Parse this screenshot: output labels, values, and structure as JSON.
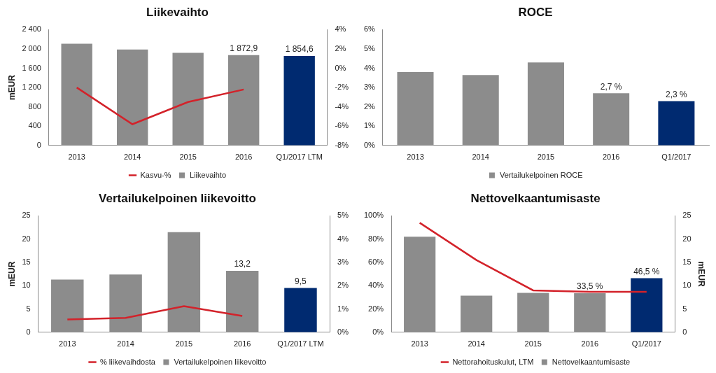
{
  "chart_data": [
    {
      "type": "bar",
      "title": "Liikevaihto",
      "categories": [
        "2013",
        "2014",
        "2015",
        "2016",
        "Q1/2017 LTM"
      ],
      "ylabel": "mEUR",
      "ylim": [
        0,
        2400
      ],
      "yticks": [
        0,
        400,
        800,
        {
          "value": 1200,
          "label": "1 200"
        },
        {
          "value": 1600,
          "label": "1 600"
        },
        {
          "value": 2000,
          "label": "2 000"
        },
        {
          "value": 2400,
          "label": "2 400"
        }
      ],
      "y2lim": [
        -8,
        4
      ],
      "y2ticks": [
        {
          "value": -8,
          "label": "-8%"
        },
        {
          "value": -6,
          "label": "-6%"
        },
        {
          "value": -4,
          "label": "-4%"
        },
        {
          "value": -2,
          "label": "-2%"
        },
        {
          "value": 0,
          "label": "0%"
        },
        {
          "value": 2,
          "label": "2%"
        },
        {
          "value": 4,
          "label": "4%"
        }
      ],
      "grid": false,
      "legend": "bottom",
      "series": [
        {
          "name": "Liikevaihto",
          "type": "bar",
          "colors": [
            "#8c8c8c",
            "#8c8c8c",
            "#8c8c8c",
            "#8c8c8c",
            "#002a70"
          ],
          "values": [
            2110,
            1990,
            1920,
            1872.9,
            1854.6
          ],
          "data_labels": true,
          "value_labels": [
            null,
            null,
            null,
            "1 872,9",
            "1 854,6"
          ]
        },
        {
          "name": "Kasvu-%",
          "type": "line",
          "color": "#d3222a",
          "axis": "y2",
          "values": [
            -2.0,
            -5.8,
            -3.5,
            -2.2,
            null
          ]
        }
      ]
    },
    {
      "type": "bar",
      "title": "ROCE",
      "categories": [
        "2013",
        "2014",
        "2015",
        "2016",
        "Q1/2017"
      ],
      "ylim": [
        0,
        6
      ],
      "yticks": [
        {
          "value": 0,
          "label": "0%"
        },
        {
          "value": 1,
          "label": "1%"
        },
        {
          "value": 2,
          "label": "2%"
        },
        {
          "value": 3,
          "label": "3%"
        },
        {
          "value": 4,
          "label": "4%"
        },
        {
          "value": 5,
          "label": "5%"
        },
        {
          "value": 6,
          "label": "6%"
        }
      ],
      "grid": false,
      "legend": "bottom",
      "series": [
        {
          "name": "Vertailukelpoinen ROCE",
          "type": "bar",
          "colors": [
            "#8c8c8c",
            "#8c8c8c",
            "#8c8c8c",
            "#8c8c8c",
            "#002a70"
          ],
          "values": [
            3.8,
            3.65,
            4.3,
            2.7,
            2.3
          ],
          "data_labels": true,
          "value_labels": [
            null,
            null,
            null,
            "2,7 %",
            "2,3 %"
          ]
        }
      ]
    },
    {
      "type": "bar",
      "title": "Vertailukelpoinen liikevoitto",
      "categories": [
        "2013",
        "2014",
        "2015",
        "2016",
        "Q1/2017 LTM"
      ],
      "ylabel": "mEUR",
      "ylim": [
        0,
        25
      ],
      "yticks": [
        0,
        5,
        10,
        15,
        20,
        25
      ],
      "y2lim": [
        0,
        5
      ],
      "y2ticks": [
        {
          "value": 0,
          "label": "0%"
        },
        {
          "value": 1,
          "label": "1%"
        },
        {
          "value": 2,
          "label": "2%"
        },
        {
          "value": 3,
          "label": "3%"
        },
        {
          "value": 4,
          "label": "4%"
        },
        {
          "value": 5,
          "label": "5%"
        }
      ],
      "grid": false,
      "legend": "bottom",
      "series": [
        {
          "name": "Vertailukelpoinen liikevoitto",
          "type": "bar",
          "colors": [
            "#8c8c8c",
            "#8c8c8c",
            "#8c8c8c",
            "#8c8c8c",
            "#002a70"
          ],
          "values": [
            11.3,
            12.4,
            21.5,
            13.2,
            9.5
          ],
          "data_labels": true,
          "value_labels": [
            null,
            null,
            null,
            "13,2",
            "9,5"
          ]
        },
        {
          "name": "% liikevaihdosta",
          "type": "line",
          "color": "#d3222a",
          "axis": "y2",
          "values": [
            0.55,
            0.62,
            1.12,
            0.7,
            null
          ]
        }
      ]
    },
    {
      "type": "bar",
      "title": "Nettovelkaantumisaste",
      "categories": [
        "2013",
        "2014",
        "2015",
        "2016",
        "Q1/2017"
      ],
      "ylim": [
        0,
        100
      ],
      "yticks": [
        {
          "value": 0,
          "label": "0%"
        },
        {
          "value": 20,
          "label": "20%"
        },
        {
          "value": 40,
          "label": "40%"
        },
        {
          "value": 60,
          "label": "60%"
        },
        {
          "value": 80,
          "label": "80%"
        },
        {
          "value": 100,
          "label": "100%"
        }
      ],
      "y2label": "mEUR",
      "y2lim": [
        0,
        25
      ],
      "y2ticks": [
        0,
        5,
        10,
        15,
        20,
        25
      ],
      "grid": false,
      "legend": "bottom",
      "series": [
        {
          "name": "Nettovelkaantumisaste",
          "type": "bar",
          "colors": [
            "#8c8c8c",
            "#8c8c8c",
            "#8c8c8c",
            "#8c8c8c",
            "#002a70"
          ],
          "values": [
            82,
            31.5,
            33.8,
            33.5,
            46.5
          ],
          "data_labels": true,
          "value_labels": [
            null,
            null,
            null,
            "33,5 %",
            "46,5 %"
          ]
        },
        {
          "name": "Nettorahoituskulut, LTM",
          "type": "line",
          "color": "#d3222a",
          "axis": "y2",
          "values": [
            23.5,
            15.5,
            9.0,
            8.7,
            8.7
          ]
        }
      ]
    }
  ]
}
